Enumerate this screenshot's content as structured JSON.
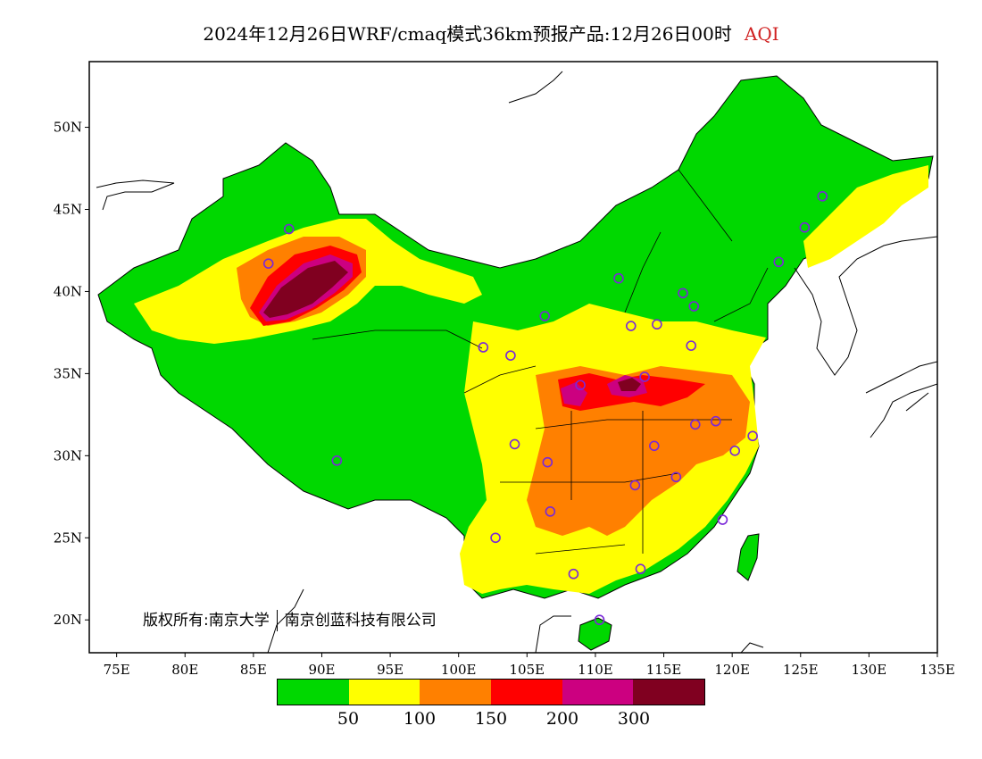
{
  "title": {
    "text": "2024年12月26日WRF/cmaq模式36km预报产品:12月26日00时",
    "variable": "AQI",
    "variable_color": "#d02020"
  },
  "axes": {
    "lon_min": 73,
    "lon_max": 135,
    "lat_min": 18,
    "lat_max": 54,
    "x_ticks": [
      {
        "value": 75,
        "label": "75E"
      },
      {
        "value": 80,
        "label": "80E"
      },
      {
        "value": 85,
        "label": "85E"
      },
      {
        "value": 90,
        "label": "90E"
      },
      {
        "value": 95,
        "label": "95E"
      },
      {
        "value": 100,
        "label": "100E"
      },
      {
        "value": 105,
        "label": "105E"
      },
      {
        "value": 110,
        "label": "110E"
      },
      {
        "value": 115,
        "label": "115E"
      },
      {
        "value": 120,
        "label": "120E"
      },
      {
        "value": 125,
        "label": "125E"
      },
      {
        "value": 130,
        "label": "130E"
      },
      {
        "value": 135,
        "label": "135E"
      }
    ],
    "y_ticks": [
      {
        "value": 20,
        "label": "20N"
      },
      {
        "value": 25,
        "label": "25N"
      },
      {
        "value": 30,
        "label": "30N"
      },
      {
        "value": 35,
        "label": "35N"
      },
      {
        "value": 40,
        "label": "40N"
      },
      {
        "value": 45,
        "label": "45N"
      },
      {
        "value": 50,
        "label": "50N"
      }
    ]
  },
  "copyright": {
    "left": "版权所有:南京大学",
    "right": "南京创蓝科技有限公司"
  },
  "legend": {
    "colors": [
      "#00d800",
      "#ffff00",
      "#ff8000",
      "#ff0000",
      "#cc0080",
      "#800020"
    ],
    "labels": [
      "50",
      "100",
      "150",
      "200",
      "300"
    ]
  },
  "stations": [
    {
      "lon": 87.6,
      "lat": 43.8
    },
    {
      "lon": 86.1,
      "lat": 41.7
    },
    {
      "lon": 91.1,
      "lat": 29.7
    },
    {
      "lon": 101.8,
      "lat": 36.6
    },
    {
      "lon": 103.8,
      "lat": 36.1
    },
    {
      "lon": 106.3,
      "lat": 38.5
    },
    {
      "lon": 111.7,
      "lat": 40.8
    },
    {
      "lon": 112.6,
      "lat": 37.9
    },
    {
      "lon": 114.5,
      "lat": 38.0
    },
    {
      "lon": 116.4,
      "lat": 39.9
    },
    {
      "lon": 117.2,
      "lat": 39.1
    },
    {
      "lon": 117.0,
      "lat": 36.7
    },
    {
      "lon": 113.6,
      "lat": 34.8
    },
    {
      "lon": 108.9,
      "lat": 34.3
    },
    {
      "lon": 104.1,
      "lat": 30.7
    },
    {
      "lon": 106.5,
      "lat": 29.6
    },
    {
      "lon": 106.7,
      "lat": 26.6
    },
    {
      "lon": 102.7,
      "lat": 25.0
    },
    {
      "lon": 108.4,
      "lat": 22.8
    },
    {
      "lon": 113.3,
      "lat": 23.1
    },
    {
      "lon": 110.3,
      "lat": 20.0
    },
    {
      "lon": 112.9,
      "lat": 28.2
    },
    {
      "lon": 114.3,
      "lat": 30.6
    },
    {
      "lon": 115.9,
      "lat": 28.7
    },
    {
      "lon": 117.3,
      "lat": 31.9
    },
    {
      "lon": 118.8,
      "lat": 32.1
    },
    {
      "lon": 120.2,
      "lat": 30.3
    },
    {
      "lon": 121.5,
      "lat": 31.2
    },
    {
      "lon": 119.3,
      "lat": 26.1
    },
    {
      "lon": 123.4,
      "lat": 41.8
    },
    {
      "lon": 125.3,
      "lat": 43.9
    },
    {
      "lon": 126.6,
      "lat": 45.8
    }
  ]
}
